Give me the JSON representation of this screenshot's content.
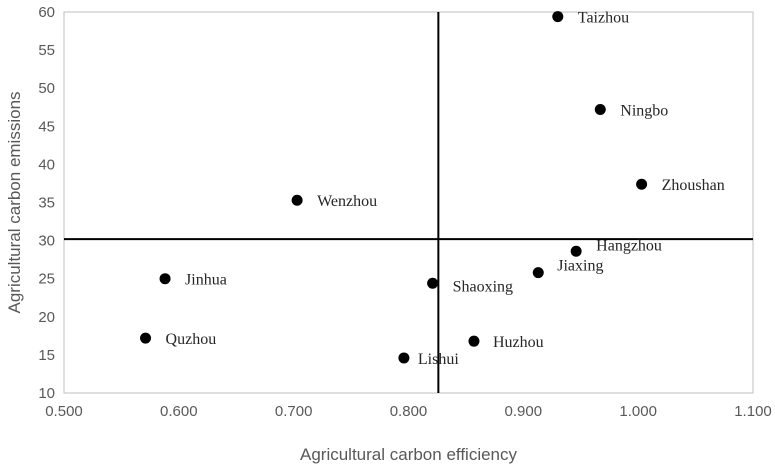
{
  "chart_data": {
    "type": "scatter",
    "title": "",
    "xlabel": "Agricultural carbon efficiency",
    "ylabel": "Agricultural carbon emissions",
    "xlim": [
      0.5,
      1.1
    ],
    "ylim": [
      10,
      60
    ],
    "xticks": [
      0.5,
      0.6,
      0.7,
      0.8,
      0.9,
      1.0,
      1.1
    ],
    "xtick_labels": [
      "0.500",
      "0.600",
      "0.700",
      "0.800",
      "0.900",
      "1.000",
      "1.100"
    ],
    "yticks": [
      10,
      15,
      20,
      25,
      30,
      35,
      40,
      45,
      50,
      55,
      60
    ],
    "ytick_labels": [
      "10",
      "15",
      "20",
      "25",
      "30",
      "35",
      "40",
      "45",
      "50",
      "55",
      "60"
    ],
    "reference_lines": {
      "x": 0.826,
      "y": 30.2
    },
    "grid": false,
    "marker_color": "#000000",
    "points": [
      {
        "label": "Taizhou",
        "x": 0.93,
        "y": 59.4
      },
      {
        "label": "Ningbo",
        "x": 0.967,
        "y": 47.2
      },
      {
        "label": "Zhoushan",
        "x": 1.003,
        "y": 37.4
      },
      {
        "label": "Wenzhou",
        "x": 0.703,
        "y": 35.3
      },
      {
        "label": "Hangzhou",
        "x": 0.946,
        "y": 28.6
      },
      {
        "label": "Jiaxing",
        "x": 0.913,
        "y": 25.8
      },
      {
        "label": "Jinhua",
        "x": 0.588,
        "y": 25.0
      },
      {
        "label": "Shaoxing",
        "x": 0.821,
        "y": 24.4
      },
      {
        "label": "Quzhou",
        "x": 0.571,
        "y": 17.2
      },
      {
        "label": "Huzhou",
        "x": 0.857,
        "y": 16.8
      },
      {
        "label": "Lishui",
        "x": 0.796,
        "y": 14.6
      }
    ]
  }
}
